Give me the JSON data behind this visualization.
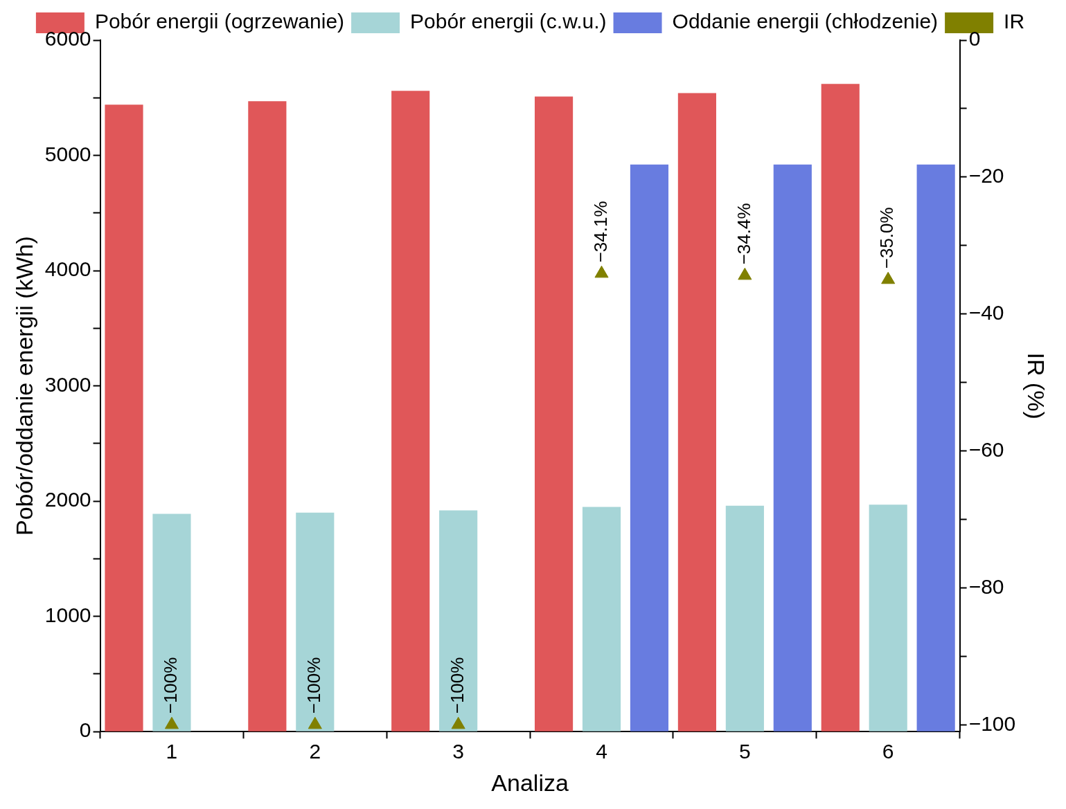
{
  "chart_data": {
    "type": "bar",
    "xlabel": "Analiza",
    "ylabel": "Pobór/oddanie energii (kWh)",
    "y2label": "IR (%)",
    "categories": [
      "1",
      "2",
      "3",
      "4",
      "5",
      "6"
    ],
    "series": [
      {
        "name": "Pobór energii (ogrzewanie)",
        "color": "#e05759",
        "values": [
          5440,
          5470,
          5560,
          5510,
          5540,
          5620
        ]
      },
      {
        "name": "Pobór energii (c.w.u.)",
        "color": "#a6d5d7",
        "values": [
          1890,
          1900,
          1920,
          1950,
          1960,
          1970
        ]
      },
      {
        "name": "Oddanie energii (chłodzenie)",
        "color": "#687ce0",
        "values": [
          null,
          null,
          null,
          4920,
          4920,
          4920
        ]
      },
      {
        "name": "IR",
        "type": "scatter",
        "axis": "y2",
        "marker": "triangle",
        "color": "#808000",
        "values": [
          -100,
          -100,
          -100,
          -34.1,
          -34.4,
          -35.0
        ],
        "value_labels": [
          "−100%",
          "−100%",
          "−100%",
          "−34.1%",
          "−34.4%",
          "−35.0%"
        ]
      }
    ],
    "ylim": [
      0,
      6000
    ],
    "yticks": [
      0,
      {
        "value": 500,
        "label": null
      },
      1000,
      {
        "value": 1500,
        "label": null
      },
      2000,
      {
        "value": 2500,
        "label": null
      },
      3000,
      {
        "value": 3500,
        "label": null
      },
      4000,
      {
        "value": 4500,
        "label": null
      },
      5000,
      {
        "value": 5500,
        "label": null
      },
      6000
    ],
    "y2lim": [
      -101,
      0
    ],
    "y2ticks": [
      {
        "value": -100,
        "label": "−100"
      },
      {
        "value": -90,
        "label": null
      },
      {
        "value": -80,
        "label": "−80"
      },
      {
        "value": -70,
        "label": null
      },
      {
        "value": -60,
        "label": "−60"
      },
      {
        "value": -50,
        "label": null
      },
      {
        "value": -40,
        "label": "−40"
      },
      {
        "value": -30,
        "label": null
      },
      {
        "value": -20,
        "label": "−20"
      },
      {
        "value": -10,
        "label": null
      },
      0
    ],
    "legend": "top",
    "grid": false
  }
}
